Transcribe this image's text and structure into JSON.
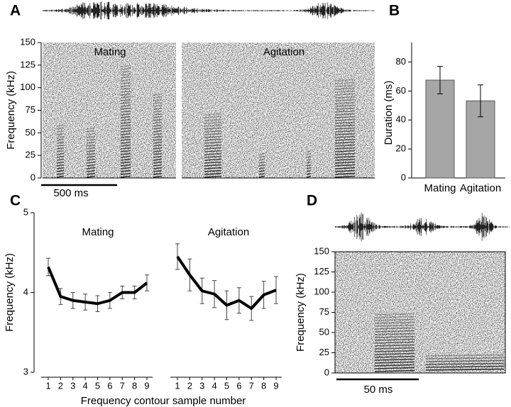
{
  "chart_data": [
    {
      "type": "spectrogram",
      "panel": "A",
      "ylabel": "Frequency (kHz)",
      "ylim": [
        0,
        150
      ],
      "yticks": [
        0,
        25,
        50,
        75,
        100,
        125,
        150
      ],
      "annotations": [
        "Mating",
        "Agitation"
      ],
      "scale_bar": "500 ms"
    },
    {
      "type": "bar",
      "panel": "B",
      "ylabel": "Duration (ms)",
      "categories": [
        "Mating",
        "Agitation"
      ],
      "values": [
        67.5,
        53.2
      ],
      "errors": [
        9.5,
        11
      ],
      "color": "#a6a6a6",
      "ylim": [
        0,
        90
      ],
      "yticks": [
        0,
        20,
        40,
        60,
        80
      ]
    },
    {
      "type": "line",
      "panel": "C",
      "title": "Mating",
      "ylabel": "Frequency (kHz)",
      "xlabel": "Frequency contour sample number",
      "x": [
        1,
        2,
        3,
        4,
        5,
        6,
        7,
        8,
        9
      ],
      "values": [
        4.32,
        3.95,
        3.9,
        3.88,
        3.86,
        3.9,
        4.0,
        4.0,
        4.12
      ],
      "errors": [
        0.11,
        0.1,
        0.1,
        0.1,
        0.1,
        0.1,
        0.08,
        0.08,
        0.1
      ],
      "color": "#000000",
      "xlim": [
        1,
        9
      ],
      "xticks": [
        1,
        2,
        3,
        4,
        5,
        6,
        7,
        8,
        9
      ],
      "ylim": [
        3,
        5
      ],
      "yticks": [
        3,
        4,
        5
      ]
    },
    {
      "type": "line",
      "title": "Agitation",
      "x": [
        1,
        2,
        3,
        4,
        5,
        6,
        7,
        8,
        9
      ],
      "values": [
        4.45,
        4.22,
        4.02,
        3.98,
        3.84,
        3.9,
        3.8,
        3.97,
        4.03
      ],
      "errors": [
        0.16,
        0.2,
        0.16,
        0.17,
        0.18,
        0.16,
        0.15,
        0.17,
        0.17
      ],
      "color": "#000000",
      "xlim": [
        1,
        9
      ],
      "xticks": [
        1,
        2,
        3,
        4,
        5,
        6,
        7,
        8,
        9
      ],
      "ylim": [
        3,
        5
      ]
    },
    {
      "type": "spectrogram",
      "panel": "D",
      "ylabel": "Frequency (kHz)",
      "ylim": [
        0,
        150
      ],
      "yticks": [
        0,
        25,
        50,
        75,
        100,
        125,
        150
      ],
      "scale_bar": "50 ms"
    }
  ]
}
